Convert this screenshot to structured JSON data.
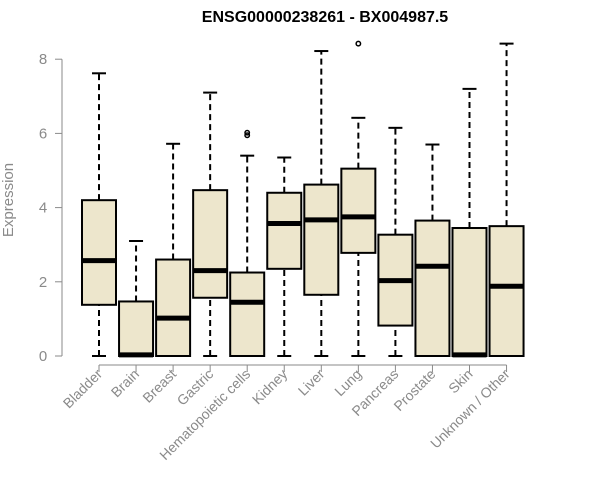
{
  "chart_data": {
    "type": "boxplot",
    "title": "ENSG00000238261 - BX004987.5",
    "ylabel": "Expression",
    "xlabel": "",
    "ylim": [
      0,
      8.5
    ],
    "yticks": [
      0,
      2,
      4,
      6,
      8
    ],
    "box_fill": "#ede6cc",
    "box_stroke": "#000000",
    "categories": [
      "Bladder",
      "Brain",
      "Breast",
      "Gastric",
      "Hematopoietic cells",
      "Kidney",
      "Liver",
      "Lung",
      "Pancreas",
      "Prostate",
      "Skin",
      "Unknown / Other"
    ],
    "boxes": [
      {
        "category": "Bladder",
        "min": 0,
        "q1": 1.38,
        "median": 2.57,
        "q3": 4.2,
        "max": 7.62,
        "outliers": []
      },
      {
        "category": "Brain",
        "min": 0,
        "q1": 0,
        "median": 0.03,
        "q3": 1.47,
        "max": 3.1,
        "outliers": []
      },
      {
        "category": "Breast",
        "min": 0,
        "q1": 0,
        "median": 1.02,
        "q3": 2.6,
        "max": 5.72,
        "outliers": []
      },
      {
        "category": "Gastric",
        "min": 0,
        "q1": 1.57,
        "median": 2.3,
        "q3": 4.47,
        "max": 7.1,
        "outliers": []
      },
      {
        "category": "Hematopoietic cells",
        "min": 0,
        "q1": 0,
        "median": 1.45,
        "q3": 2.25,
        "max": 5.4,
        "outliers": [
          5.95,
          6.02
        ]
      },
      {
        "category": "Kidney",
        "min": 0,
        "q1": 2.35,
        "median": 3.57,
        "q3": 4.4,
        "max": 5.35,
        "outliers": []
      },
      {
        "category": "Liver",
        "min": 0,
        "q1": 1.65,
        "median": 3.67,
        "q3": 4.62,
        "max": 8.22,
        "outliers": []
      },
      {
        "category": "Lung",
        "min": 0,
        "q1": 2.78,
        "median": 3.75,
        "q3": 5.05,
        "max": 6.42,
        "outliers": [
          8.42
        ]
      },
      {
        "category": "Pancreas",
        "min": 0,
        "q1": 0.82,
        "median": 2.03,
        "q3": 3.27,
        "max": 6.15,
        "outliers": []
      },
      {
        "category": "Prostate",
        "min": 0,
        "q1": 0,
        "median": 2.42,
        "q3": 3.65,
        "max": 5.7,
        "outliers": []
      },
      {
        "category": "Skin",
        "min": 0,
        "q1": 0,
        "median": 0.03,
        "q3": 3.45,
        "max": 7.2,
        "outliers": []
      },
      {
        "category": "Unknown / Other",
        "min": 0,
        "q1": 0,
        "median": 1.88,
        "q3": 3.5,
        "max": 8.42,
        "outliers": []
      }
    ]
  }
}
